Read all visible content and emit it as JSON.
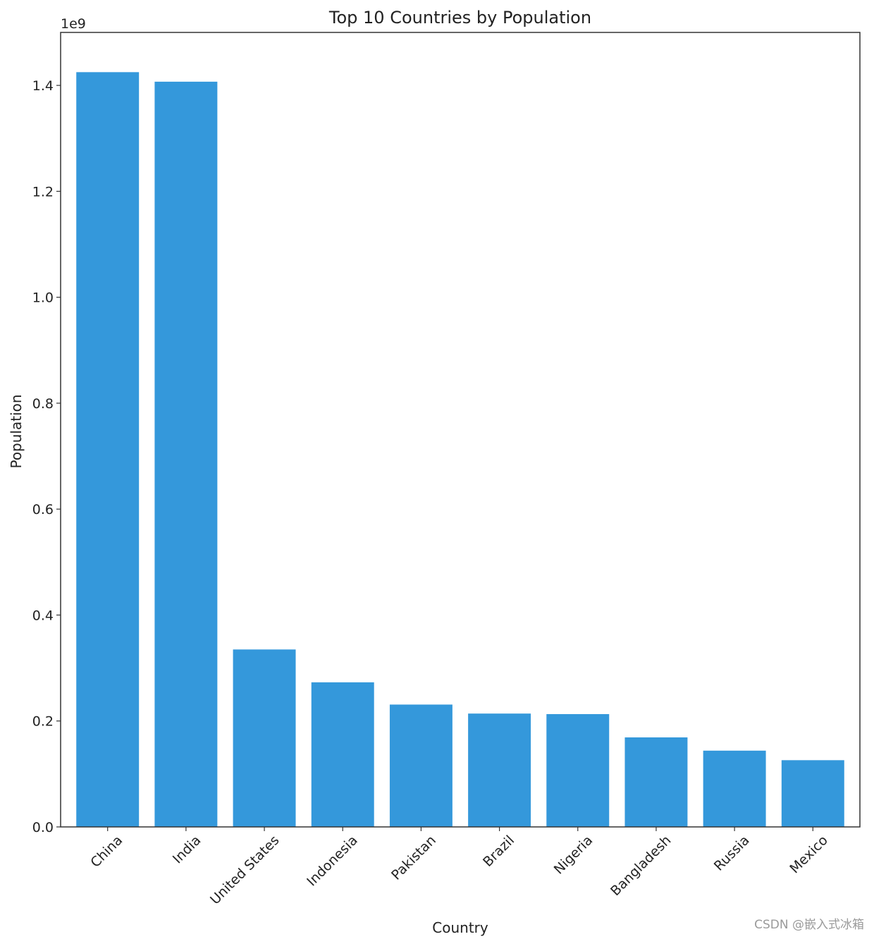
{
  "chart_data": {
    "type": "bar",
    "title": "Top 10 Countries by Population",
    "xlabel": "Country",
    "ylabel": "Population",
    "y_offset_label": "1e9",
    "categories": [
      "China",
      "India",
      "United States",
      "Indonesia",
      "Pakistan",
      "Brazil",
      "Nigeria",
      "Bangladesh",
      "Russia",
      "Mexico"
    ],
    "values": [
      1425000000,
      1407000000,
      335000000,
      273000000,
      231000000,
      214000000,
      213000000,
      169000000,
      144000000,
      126000000
    ],
    "ylim": [
      0,
      1500000000.0
    ],
    "yticks": [
      0,
      200000000.0,
      400000000.0,
      600000000.0,
      800000000.0,
      1000000000.0,
      1200000000.0,
      1400000000.0
    ],
    "ytick_labels": [
      "0.0",
      "0.2",
      "0.4",
      "0.6",
      "0.8",
      "1.0",
      "1.2",
      "1.4"
    ],
    "bar_color": "#3498db",
    "grid": false,
    "xtick_rotation": 45
  },
  "watermark": "CSDN @嵌入式冰箱"
}
